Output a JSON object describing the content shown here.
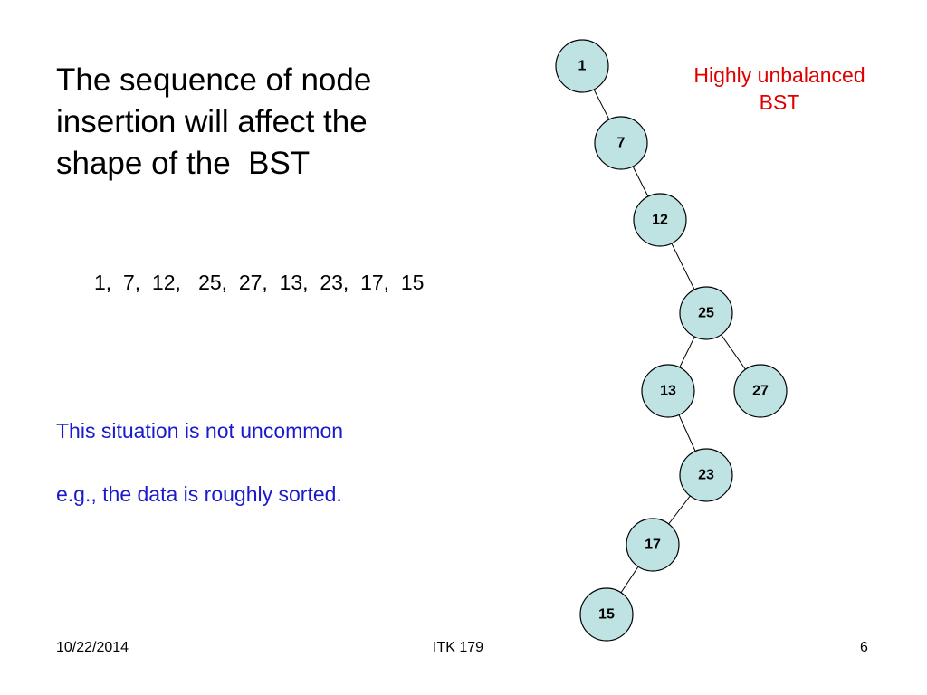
{
  "slide": {
    "title_lines": [
      "The sequence of node",
      "insertion will affect the",
      "shape of the  BST"
    ],
    "sequence": "1,  7,  12,   25,  27,  13,  23,  17,  15",
    "notes": [
      "This situation is not uncommon",
      "e.g., the data is roughly sorted."
    ],
    "tree_label_lines": [
      "Highly unbalanced",
      "BST"
    ],
    "footer": {
      "date": "10/22/2014",
      "course": "ITK 179",
      "page": "6"
    }
  },
  "colors": {
    "node_fill": "#bfe3e3",
    "node_stroke": "#000000",
    "note_text": "#1a1acc",
    "label_text": "#e00000"
  },
  "tree": {
    "nodes": [
      {
        "id": "1",
        "label": "1"
      },
      {
        "id": "7",
        "label": "7"
      },
      {
        "id": "12",
        "label": "12"
      },
      {
        "id": "25",
        "label": "25"
      },
      {
        "id": "13",
        "label": "13"
      },
      {
        "id": "27",
        "label": "27"
      },
      {
        "id": "23",
        "label": "23"
      },
      {
        "id": "17",
        "label": "17"
      },
      {
        "id": "15",
        "label": "15"
      }
    ],
    "edges": [
      [
        "1",
        "7"
      ],
      [
        "7",
        "12"
      ],
      [
        "12",
        "25"
      ],
      [
        "25",
        "13"
      ],
      [
        "25",
        "27"
      ],
      [
        "13",
        "23"
      ],
      [
        "23",
        "17"
      ],
      [
        "17",
        "15"
      ]
    ]
  }
}
